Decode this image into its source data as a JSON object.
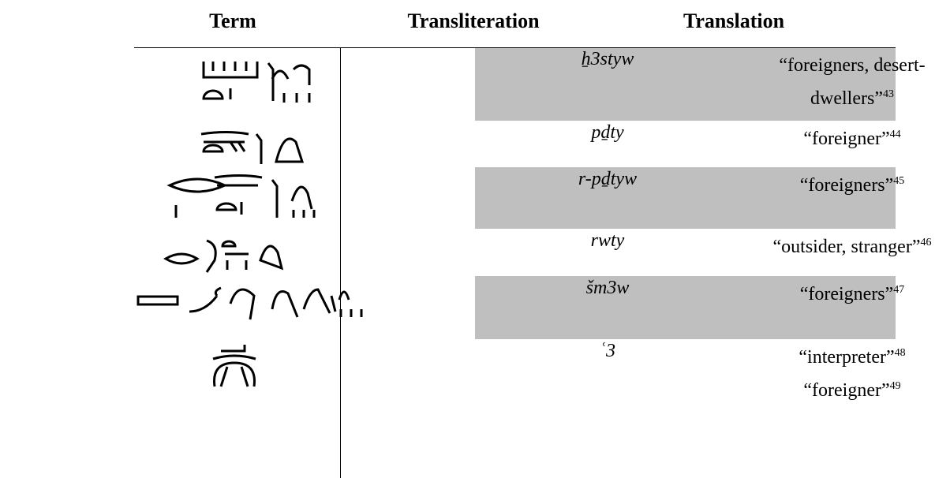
{
  "header": [
    "Term",
    "Transliteration",
    "Translation"
  ],
  "rows": [
    {
      "transliteration": "ẖ3styw",
      "translations": [
        {
          "text": "“foreigners, desert-dwellers”",
          "note": "43"
        }
      ]
    },
    {
      "transliteration": "pḏty",
      "translations": [
        {
          "text": "“foreigner”",
          "note": "44"
        }
      ]
    },
    {
      "transliteration": "r-pḏtyw",
      "translations": [
        {
          "text": "“foreigners”",
          "note": "45"
        }
      ]
    },
    {
      "transliteration": "rwty",
      "translations": [
        {
          "text": "“outsider, stranger”",
          "note": "46"
        }
      ]
    },
    {
      "transliteration": "šm3w",
      "translations": [
        {
          "text": "“foreigners”",
          "note": "47"
        }
      ]
    },
    {
      "transliteration": "ʿ3",
      "translations": [
        {
          "text": "“interpreter”",
          "note": "48"
        },
        {
          "text": "“foreigner”",
          "note": "49"
        }
      ]
    }
  ]
}
